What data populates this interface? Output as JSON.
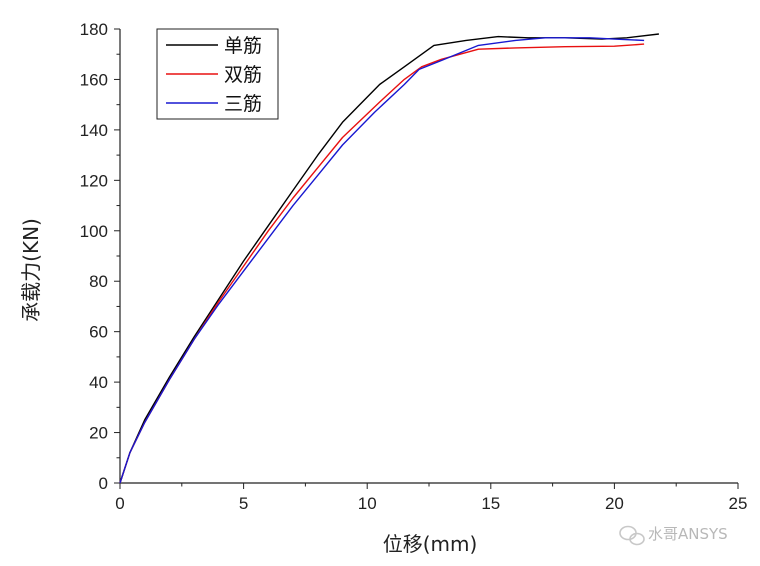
{
  "chart_data": {
    "type": "line",
    "title": "",
    "xlabel": "位移(mm)",
    "ylabel": "承载力(KN)",
    "xlim": [
      0,
      25
    ],
    "ylim": [
      0,
      180
    ],
    "xticks": [
      0,
      5,
      10,
      15,
      20,
      25
    ],
    "yticks": [
      0,
      20,
      40,
      60,
      80,
      100,
      120,
      140,
      160,
      180
    ],
    "grid": false,
    "legend_position": "top-left",
    "series": [
      {
        "name": "单筋",
        "color": "#000000",
        "points": [
          [
            0,
            0
          ],
          [
            0.4,
            12
          ],
          [
            1,
            25
          ],
          [
            2,
            42
          ],
          [
            3,
            58
          ],
          [
            4,
            73
          ],
          [
            5,
            88
          ],
          [
            6,
            102
          ],
          [
            7,
            116
          ],
          [
            8,
            130
          ],
          [
            9,
            143
          ],
          [
            10.5,
            158
          ],
          [
            11.5,
            165
          ],
          [
            12.7,
            173.5
          ],
          [
            14,
            175.5
          ],
          [
            15.3,
            177
          ],
          [
            16.5,
            176.5
          ],
          [
            18,
            176.5
          ],
          [
            19.5,
            176
          ],
          [
            20.5,
            176.5
          ],
          [
            21.8,
            178
          ]
        ]
      },
      {
        "name": "双筋",
        "color": "#e81010",
        "points": [
          [
            0,
            0
          ],
          [
            0.4,
            12
          ],
          [
            1,
            24
          ],
          [
            2,
            41
          ],
          [
            3,
            57
          ],
          [
            4,
            72
          ],
          [
            5,
            86
          ],
          [
            6,
            100
          ],
          [
            7,
            113
          ],
          [
            8,
            125
          ],
          [
            9,
            137
          ],
          [
            10.5,
            151
          ],
          [
            11.5,
            160
          ],
          [
            12.2,
            165
          ],
          [
            13,
            168
          ],
          [
            14.5,
            172
          ],
          [
            16,
            172.5
          ],
          [
            18,
            173
          ],
          [
            20,
            173.2
          ],
          [
            21.2,
            174
          ]
        ]
      },
      {
        "name": "三筋",
        "color": "#1818d0",
        "points": [
          [
            0,
            0
          ],
          [
            0.4,
            12
          ],
          [
            1,
            24
          ],
          [
            2,
            41
          ],
          [
            3,
            57
          ],
          [
            4,
            71
          ],
          [
            5,
            84
          ],
          [
            6,
            97
          ],
          [
            7,
            110
          ],
          [
            8,
            122
          ],
          [
            9,
            134
          ],
          [
            10.3,
            147
          ],
          [
            11.5,
            158
          ],
          [
            12.1,
            164
          ],
          [
            13,
            167.5
          ],
          [
            14.5,
            173.5
          ],
          [
            16,
            175.5
          ],
          [
            17.2,
            176.5
          ],
          [
            19,
            176.5
          ],
          [
            20,
            176
          ],
          [
            21.2,
            175.5
          ]
        ]
      }
    ],
    "watermark": "水哥ANSYS"
  }
}
